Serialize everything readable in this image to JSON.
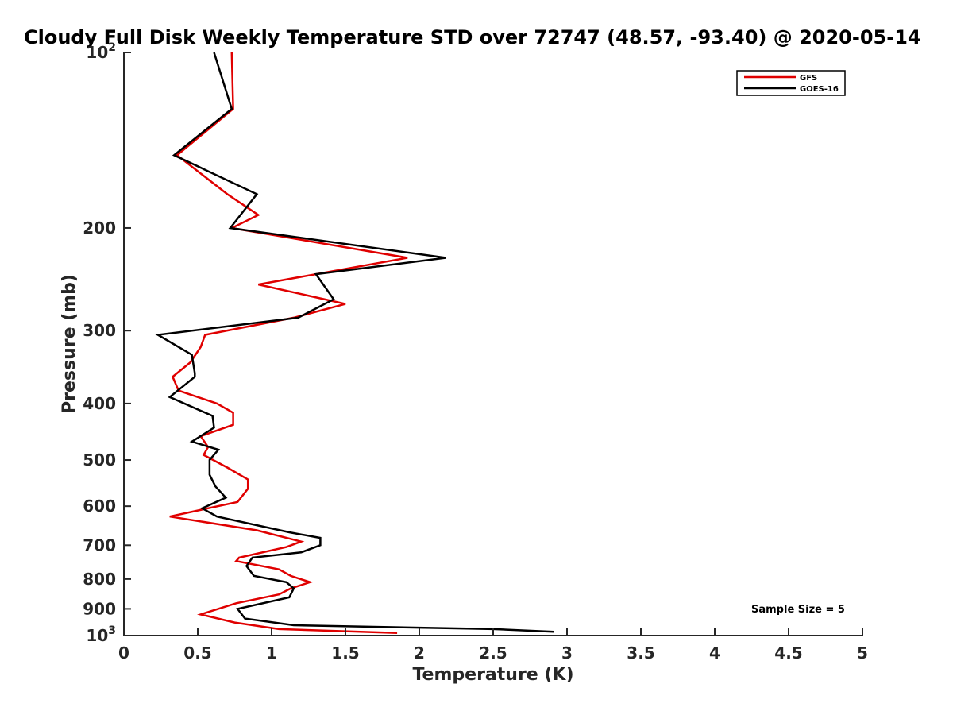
{
  "chart_data": {
    "type": "line",
    "title": "Cloudy Full Disk Weekly Temperature STD over 72747 (48.57, -93.40) @ 2020-05-14",
    "xlabel": "Temperature (K)",
    "ylabel": "Pressure (mb)",
    "xlim": [
      0,
      5
    ],
    "ylim": [
      100,
      1000
    ],
    "y_scale": "log",
    "y_reversed": true,
    "grid": false,
    "legend_position": "top-right",
    "x_ticks": [
      0,
      0.5,
      1,
      1.5,
      2,
      2.5,
      3,
      3.5,
      4,
      4.5,
      5
    ],
    "x_tick_labels": [
      "0",
      "0.5",
      "1",
      "1.5",
      "2",
      "2.5",
      "3",
      "3.5",
      "4",
      "4.5",
      "5"
    ],
    "y_ticks": [
      100,
      200,
      300,
      400,
      500,
      600,
      700,
      800,
      900,
      1000
    ],
    "y_tick_labels": [
      {
        "base": "10",
        "sup": "2"
      },
      {
        "base": "200",
        "sup": ""
      },
      {
        "base": "300",
        "sup": ""
      },
      {
        "base": "400",
        "sup": ""
      },
      {
        "base": "500",
        "sup": ""
      },
      {
        "base": "600",
        "sup": ""
      },
      {
        "base": "700",
        "sup": ""
      },
      {
        "base": "800",
        "sup": ""
      },
      {
        "base": "900",
        "sup": ""
      },
      {
        "base": "10",
        "sup": "3"
      }
    ],
    "annotation": "Sample Size = 5",
    "series": [
      {
        "name": "GFS",
        "color": "#e00000",
        "points": [
          [
            0.73,
            100
          ],
          [
            0.74,
            125
          ],
          [
            0.36,
            150
          ],
          [
            0.7,
            175
          ],
          [
            0.91,
            190
          ],
          [
            0.73,
            200
          ],
          [
            1.92,
            225
          ],
          [
            0.91,
            250
          ],
          [
            1.5,
            270
          ],
          [
            1.15,
            285
          ],
          [
            0.55,
            305
          ],
          [
            0.52,
            320
          ],
          [
            0.45,
            340
          ],
          [
            0.33,
            360
          ],
          [
            0.37,
            380
          ],
          [
            0.63,
            400
          ],
          [
            0.74,
            415
          ],
          [
            0.74,
            435
          ],
          [
            0.52,
            455
          ],
          [
            0.57,
            475
          ],
          [
            0.54,
            490
          ],
          [
            0.7,
            515
          ],
          [
            0.84,
            540
          ],
          [
            0.84,
            560
          ],
          [
            0.77,
            590
          ],
          [
            0.31,
            625
          ],
          [
            0.9,
            660
          ],
          [
            1.2,
            690
          ],
          [
            1.1,
            705
          ],
          [
            0.78,
            735
          ],
          [
            0.76,
            745
          ],
          [
            1.05,
            770
          ],
          [
            1.13,
            790
          ],
          [
            1.26,
            810
          ],
          [
            1.13,
            830
          ],
          [
            1.05,
            850
          ],
          [
            0.76,
            880
          ],
          [
            0.52,
            920
          ],
          [
            0.75,
            950
          ],
          [
            1.05,
            975
          ],
          [
            1.85,
            990
          ]
        ]
      },
      {
        "name": "GOES-16",
        "color": "#000000",
        "points": [
          [
            0.61,
            100
          ],
          [
            0.73,
            125
          ],
          [
            0.34,
            150
          ],
          [
            0.9,
            175
          ],
          [
            0.72,
            200
          ],
          [
            2.18,
            225
          ],
          [
            1.3,
            240
          ],
          [
            1.42,
            265
          ],
          [
            1.18,
            285
          ],
          [
            0.23,
            305
          ],
          [
            0.46,
            330
          ],
          [
            0.48,
            355
          ],
          [
            0.48,
            360
          ],
          [
            0.31,
            390
          ],
          [
            0.6,
            420
          ],
          [
            0.61,
            440
          ],
          [
            0.46,
            465
          ],
          [
            0.64,
            480
          ],
          [
            0.58,
            500
          ],
          [
            0.58,
            530
          ],
          [
            0.62,
            555
          ],
          [
            0.69,
            580
          ],
          [
            0.53,
            605
          ],
          [
            0.63,
            625
          ],
          [
            1.12,
            665
          ],
          [
            1.33,
            680
          ],
          [
            1.33,
            700
          ],
          [
            1.2,
            720
          ],
          [
            0.87,
            735
          ],
          [
            0.83,
            760
          ],
          [
            0.88,
            790
          ],
          [
            1.1,
            810
          ],
          [
            1.15,
            830
          ],
          [
            1.12,
            860
          ],
          [
            0.77,
            900
          ],
          [
            0.82,
            935
          ],
          [
            1.15,
            960
          ],
          [
            2.5,
            975
          ],
          [
            2.91,
            985
          ]
        ]
      }
    ]
  }
}
